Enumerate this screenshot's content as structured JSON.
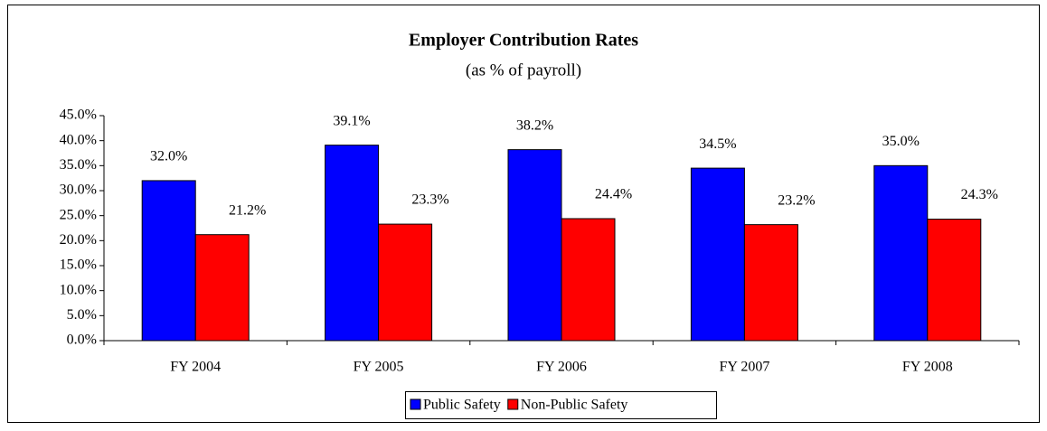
{
  "chart_data": {
    "type": "bar",
    "title": "Employer Contribution Rates",
    "subtitle": "(as % of payroll)",
    "categories": [
      "FY 2004",
      "FY 2005",
      "FY 2006",
      "FY 2007",
      "FY 2008"
    ],
    "series": [
      {
        "name": "Public Safety",
        "color": "#0000ff",
        "values": [
          32.0,
          39.1,
          38.2,
          34.5,
          35.0
        ],
        "value_labels": [
          "32.0%",
          "39.1%",
          "38.2%",
          "34.5%",
          "35.0%"
        ]
      },
      {
        "name": "Non-Public Safety",
        "color": "#ff0000",
        "values": [
          21.2,
          23.3,
          24.4,
          23.2,
          24.3
        ],
        "value_labels": [
          "21.2%",
          "23.3%",
          "24.4%",
          "23.2%",
          "24.3%"
        ]
      }
    ],
    "ylim": [
      0,
      45
    ],
    "yticks": [
      {
        "value": 0,
        "label": "0.0%"
      },
      {
        "value": 5,
        "label": "5.0%"
      },
      {
        "value": 10,
        "label": "10.0%"
      },
      {
        "value": 15,
        "label": "15.0%"
      },
      {
        "value": 20,
        "label": "20.0%"
      },
      {
        "value": 25,
        "label": "25.0%"
      },
      {
        "value": 30,
        "label": "30.0%"
      },
      {
        "value": 35,
        "label": "35.0%"
      },
      {
        "value": 40,
        "label": "40.0%"
      },
      {
        "value": 45,
        "label": "45.0%"
      }
    ],
    "legend": "bottom"
  }
}
